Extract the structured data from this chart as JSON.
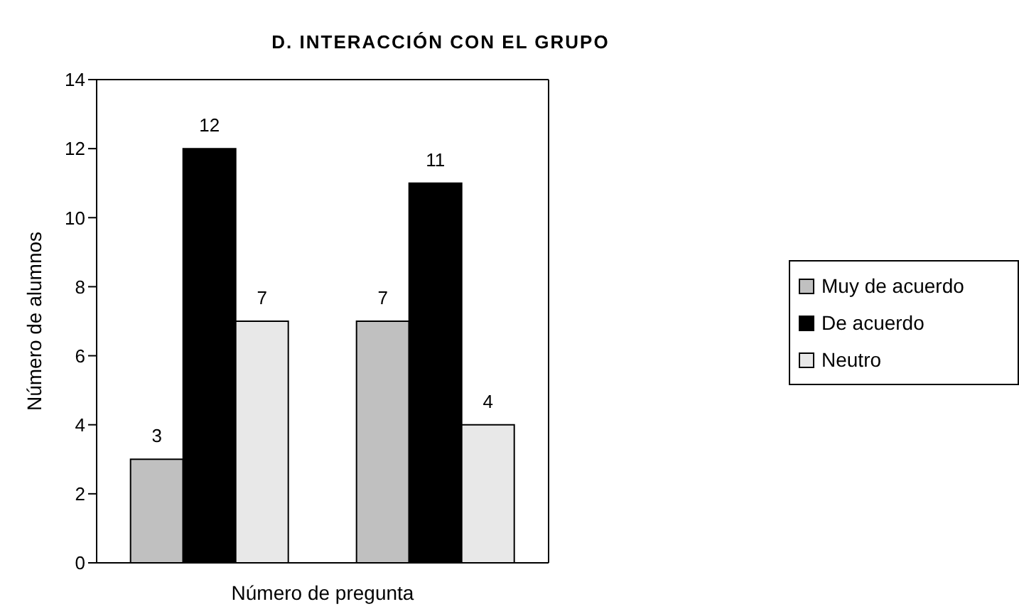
{
  "chart_data": {
    "type": "bar",
    "title": "D. INTERACCIÓN CON EL GRUPO",
    "xlabel": "Número de pregunta",
    "ylabel": "Número de alumnos",
    "categories": [
      null,
      null
    ],
    "series": [
      {
        "name": "Muy de acuerdo",
        "color": "#c0c0c0",
        "values": [
          3,
          7
        ]
      },
      {
        "name": "De acuerdo",
        "color": "#000000",
        "values": [
          12,
          11
        ]
      },
      {
        "name": "Neutro",
        "color": "#e8e8e8",
        "values": [
          7,
          4
        ]
      }
    ],
    "ylim": [
      0,
      14
    ],
    "yticks": [
      0,
      2,
      4,
      6,
      8,
      10,
      12,
      14
    ],
    "grid": false,
    "legend": "right",
    "data_labels": true
  }
}
